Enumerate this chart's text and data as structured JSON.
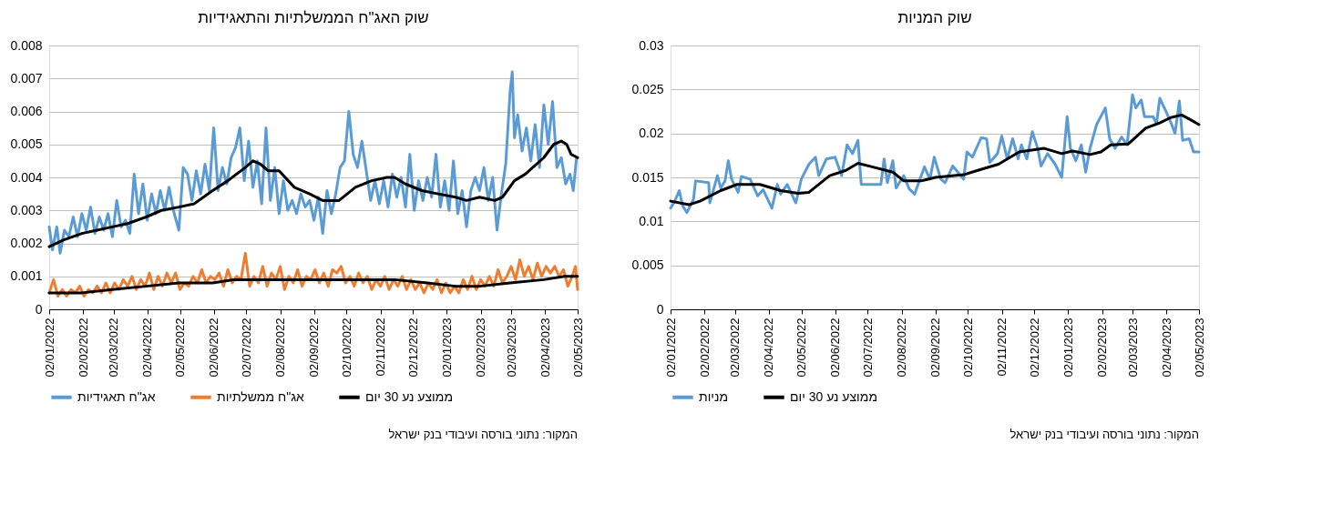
{
  "chart_data": [
    {
      "type": "line",
      "title": "שוק האג\"ח הממשלתיות והתאגידיות",
      "xlim": [
        "2022-01-02",
        "2023-05-02"
      ],
      "xticks": [
        {
          "value": "2022-01-02",
          "label": "02/01/2022"
        },
        {
          "value": "2022-02-02",
          "label": "02/02/2022"
        },
        {
          "value": "2022-03-02",
          "label": "02/03/2022"
        },
        {
          "value": "2022-04-02",
          "label": "02/04/2022"
        },
        {
          "value": "2022-05-02",
          "label": "02/05/2022"
        },
        {
          "value": "2022-06-02",
          "label": "02/06/2022"
        },
        {
          "value": "2022-07-02",
          "label": "02/07/2022"
        },
        {
          "value": "2022-08-02",
          "label": "02/08/2022"
        },
        {
          "value": "2022-09-02",
          "label": "02/09/2022"
        },
        {
          "value": "2022-10-02",
          "label": "02/10/2022"
        },
        {
          "value": "2022-11-02",
          "label": "02/11/2022"
        },
        {
          "value": "2022-12-02",
          "label": "02/12/2022"
        },
        {
          "value": "2023-01-02",
          "label": "02/01/2023"
        },
        {
          "value": "2023-02-02",
          "label": "02/02/2023"
        },
        {
          "value": "2023-03-02",
          "label": "02/03/2023"
        },
        {
          "value": "2023-04-02",
          "label": "02/04/2023"
        },
        {
          "value": "2023-05-02",
          "label": "02/05/2023"
        }
      ],
      "ylim": [
        0,
        0.008
      ],
      "yticks": [
        0,
        0.001,
        0.002,
        0.003,
        0.004,
        0.005,
        0.006,
        0.007,
        0.008
      ],
      "grid": "y",
      "legend": "bottom",
      "annotations": [
        "המקור: נתוני בורסה ועיבודי בנק ישראל"
      ],
      "series": [
        {
          "name": "אג\"ח תאגידיות",
          "color": "#5b9bd5",
          "x": [
            "2022-01-02",
            "2022-01-05",
            "2022-01-09",
            "2022-01-12",
            "2022-01-16",
            "2022-01-20",
            "2022-01-24",
            "2022-01-28",
            "2022-02-01",
            "2022-02-05",
            "2022-02-09",
            "2022-02-13",
            "2022-02-17",
            "2022-02-21",
            "2022-02-25",
            "2022-03-01",
            "2022-03-05",
            "2022-03-09",
            "2022-03-13",
            "2022-03-17",
            "2022-03-21",
            "2022-03-25",
            "2022-03-29",
            "2022-04-02",
            "2022-04-06",
            "2022-04-10",
            "2022-04-14",
            "2022-04-18",
            "2022-04-22",
            "2022-04-26",
            "2022-05-01",
            "2022-05-05",
            "2022-05-09",
            "2022-05-13",
            "2022-05-17",
            "2022-05-21",
            "2022-05-25",
            "2022-05-29",
            "2022-06-02",
            "2022-06-06",
            "2022-06-10",
            "2022-06-14",
            "2022-06-18",
            "2022-06-22",
            "2022-06-26",
            "2022-06-30",
            "2022-07-04",
            "2022-07-08",
            "2022-07-12",
            "2022-07-16",
            "2022-07-20",
            "2022-07-24",
            "2022-07-28",
            "2022-08-01",
            "2022-08-05",
            "2022-08-09",
            "2022-08-13",
            "2022-08-17",
            "2022-08-21",
            "2022-08-25",
            "2022-08-29",
            "2022-09-02",
            "2022-09-06",
            "2022-09-10",
            "2022-09-14",
            "2022-09-18",
            "2022-09-22",
            "2022-09-26",
            "2022-09-30",
            "2022-10-04",
            "2022-10-08",
            "2022-10-12",
            "2022-10-16",
            "2022-10-20",
            "2022-10-24",
            "2022-10-28",
            "2022-11-01",
            "2022-11-05",
            "2022-11-09",
            "2022-11-13",
            "2022-11-17",
            "2022-11-21",
            "2022-11-25",
            "2022-11-29",
            "2022-12-03",
            "2022-12-07",
            "2022-12-11",
            "2022-12-15",
            "2022-12-19",
            "2022-12-23",
            "2022-12-27",
            "2022-12-31",
            "2023-01-04",
            "2023-01-08",
            "2023-01-12",
            "2023-01-16",
            "2023-01-20",
            "2023-01-24",
            "2023-01-28",
            "2023-02-01",
            "2023-02-05",
            "2023-02-09",
            "2023-02-13",
            "2023-02-17",
            "2023-02-21",
            "2023-02-25",
            "2023-03-01",
            "2023-03-03",
            "2023-03-05",
            "2023-03-08",
            "2023-03-12",
            "2023-03-16",
            "2023-03-20",
            "2023-03-24",
            "2023-03-28",
            "2023-04-01",
            "2023-04-05",
            "2023-04-09",
            "2023-04-13",
            "2023-04-17",
            "2023-04-21",
            "2023-04-25",
            "2023-04-28",
            "2023-05-01"
          ],
          "values": [
            0.0025,
            0.0018,
            0.0025,
            0.0017,
            0.0024,
            0.0022,
            0.0028,
            0.0022,
            0.0029,
            0.0024,
            0.0031,
            0.0023,
            0.0028,
            0.0024,
            0.0029,
            0.0022,
            0.0033,
            0.0025,
            0.0027,
            0.0023,
            0.0041,
            0.0029,
            0.0038,
            0.0027,
            0.0035,
            0.0029,
            0.0036,
            0.003,
            0.0037,
            0.003,
            0.0024,
            0.0043,
            0.0041,
            0.0033,
            0.0042,
            0.0035,
            0.0044,
            0.0036,
            0.0055,
            0.0036,
            0.0043,
            0.0038,
            0.0046,
            0.0049,
            0.0055,
            0.0039,
            0.0051,
            0.0037,
            0.0045,
            0.0032,
            0.0055,
            0.0033,
            0.0043,
            0.0029,
            0.0039,
            0.003,
            0.0033,
            0.0029,
            0.0035,
            0.0031,
            0.0033,
            0.0027,
            0.0034,
            0.0023,
            0.0036,
            0.0029,
            0.0035,
            0.0043,
            0.0045,
            0.006,
            0.0047,
            0.0043,
            0.0051,
            0.0042,
            0.0033,
            0.0039,
            0.0032,
            0.0039,
            0.0031,
            0.0041,
            0.0034,
            0.004,
            0.0031,
            0.0047,
            0.003,
            0.0039,
            0.0033,
            0.004,
            0.0034,
            0.0047,
            0.0031,
            0.0039,
            0.003,
            0.0045,
            0.0029,
            0.0036,
            0.0025,
            0.0036,
            0.004,
            0.0036,
            0.0043,
            0.0033,
            0.004,
            0.0024,
            0.0035,
            0.0044,
            0.0066,
            0.0072,
            0.0052,
            0.0059,
            0.0048,
            0.0055,
            0.0045,
            0.0056,
            0.0043,
            0.0062,
            0.005,
            0.0063,
            0.0043,
            0.0046,
            0.0038,
            0.0041,
            0.0036,
            0.0046
          ]
        },
        {
          "name": "אג\"ח ממשלתיות",
          "color": "#ed7d31",
          "x": [
            "2022-01-02",
            "2022-01-06",
            "2022-01-10",
            "2022-01-14",
            "2022-01-18",
            "2022-01-22",
            "2022-01-26",
            "2022-01-30",
            "2022-02-03",
            "2022-02-07",
            "2022-02-11",
            "2022-02-15",
            "2022-02-19",
            "2022-02-23",
            "2022-02-27",
            "2022-03-03",
            "2022-03-07",
            "2022-03-11",
            "2022-03-15",
            "2022-03-19",
            "2022-03-23",
            "2022-03-27",
            "2022-03-31",
            "2022-04-04",
            "2022-04-08",
            "2022-04-12",
            "2022-04-16",
            "2022-04-20",
            "2022-04-24",
            "2022-04-28",
            "2022-05-02",
            "2022-05-06",
            "2022-05-10",
            "2022-05-14",
            "2022-05-18",
            "2022-05-22",
            "2022-05-26",
            "2022-05-30",
            "2022-06-03",
            "2022-06-07",
            "2022-06-11",
            "2022-06-15",
            "2022-06-19",
            "2022-06-23",
            "2022-06-27",
            "2022-07-01",
            "2022-07-05",
            "2022-07-09",
            "2022-07-13",
            "2022-07-17",
            "2022-07-21",
            "2022-07-25",
            "2022-07-29",
            "2022-08-02",
            "2022-08-06",
            "2022-08-10",
            "2022-08-14",
            "2022-08-18",
            "2022-08-22",
            "2022-08-26",
            "2022-08-30",
            "2022-09-03",
            "2022-09-07",
            "2022-09-11",
            "2022-09-15",
            "2022-09-19",
            "2022-09-23",
            "2022-09-27",
            "2022-10-01",
            "2022-10-05",
            "2022-10-09",
            "2022-10-13",
            "2022-10-17",
            "2022-10-21",
            "2022-10-25",
            "2022-10-29",
            "2022-11-02",
            "2022-11-06",
            "2022-11-10",
            "2022-11-14",
            "2022-11-18",
            "2022-11-22",
            "2022-11-26",
            "2022-11-30",
            "2022-12-04",
            "2022-12-08",
            "2022-12-12",
            "2022-12-16",
            "2022-12-20",
            "2022-12-24",
            "2022-12-28",
            "2023-01-01",
            "2023-01-05",
            "2023-01-09",
            "2023-01-13",
            "2023-01-17",
            "2023-01-21",
            "2023-01-25",
            "2023-01-29",
            "2023-02-02",
            "2023-02-06",
            "2023-02-10",
            "2023-02-14",
            "2023-02-18",
            "2023-02-22",
            "2023-02-26",
            "2023-03-02",
            "2023-03-06",
            "2023-03-10",
            "2023-03-14",
            "2023-03-18",
            "2023-03-22",
            "2023-03-26",
            "2023-03-30",
            "2023-04-03",
            "2023-04-07",
            "2023-04-11",
            "2023-04-15",
            "2023-04-19",
            "2023-04-23",
            "2023-04-27",
            "2023-04-30",
            "2023-05-02"
          ],
          "values": [
            0.0005,
            0.0009,
            0.0004,
            0.0006,
            0.0004,
            0.0006,
            0.0005,
            0.0007,
            0.0004,
            0.0006,
            0.0005,
            0.0007,
            0.0005,
            0.0008,
            0.0005,
            0.0008,
            0.0006,
            0.0009,
            0.0007,
            0.001,
            0.0006,
            0.0009,
            0.0007,
            0.0011,
            0.0006,
            0.001,
            0.0007,
            0.0011,
            0.0008,
            0.0011,
            0.0006,
            0.0008,
            0.0007,
            0.001,
            0.0008,
            0.0012,
            0.0008,
            0.001,
            0.0009,
            0.0011,
            0.0007,
            0.0012,
            0.0008,
            0.001,
            0.0009,
            0.0017,
            0.0007,
            0.001,
            0.0008,
            0.0013,
            0.0007,
            0.0011,
            0.0009,
            0.0013,
            0.0006,
            0.001,
            0.0008,
            0.0012,
            0.0007,
            0.001,
            0.0009,
            0.0012,
            0.0008,
            0.0011,
            0.0007,
            0.0012,
            0.0011,
            0.0013,
            0.0008,
            0.001,
            0.0007,
            0.0011,
            0.0008,
            0.001,
            0.0006,
            0.0009,
            0.0007,
            0.001,
            0.0006,
            0.0009,
            0.0007,
            0.001,
            0.0006,
            0.0009,
            0.0006,
            0.0008,
            0.0005,
            0.0008,
            0.0006,
            0.0009,
            0.0005,
            0.0008,
            0.0005,
            0.0007,
            0.0005,
            0.0009,
            0.0006,
            0.001,
            0.0006,
            0.0009,
            0.0007,
            0.001,
            0.0007,
            0.0012,
            0.0008,
            0.001,
            0.0013,
            0.0009,
            0.0015,
            0.001,
            0.0013,
            0.0009,
            0.0014,
            0.001,
            0.0013,
            0.0011,
            0.0013,
            0.001,
            0.0012,
            0.0007,
            0.001,
            0.0013,
            0.0006
          ]
        },
        {
          "name": "ממוצע נע 30 יום",
          "color": "#000000",
          "x": [
            "2022-01-02",
            "2022-01-15",
            "2022-02-01",
            "2022-02-15",
            "2022-03-01",
            "2022-03-15",
            "2022-04-01",
            "2022-04-15",
            "2022-05-01",
            "2022-05-15",
            "2022-06-01",
            "2022-06-15",
            "2022-07-01",
            "2022-07-08",
            "2022-07-15",
            "2022-07-22",
            "2022-08-01",
            "2022-08-15",
            "2022-08-29",
            "2022-09-10",
            "2022-09-25",
            "2022-10-10",
            "2022-10-25",
            "2022-11-08",
            "2022-11-15",
            "2022-11-25",
            "2022-12-10",
            "2022-12-25",
            "2023-01-10",
            "2023-01-20",
            "2023-02-01",
            "2023-02-15",
            "2023-02-22",
            "2023-03-05",
            "2023-03-15",
            "2023-04-01",
            "2023-04-10",
            "2023-04-17",
            "2023-04-22",
            "2023-04-26",
            "2023-05-02"
          ],
          "values": [
            0.0019,
            0.0021,
            0.0023,
            0.0024,
            0.0025,
            0.0026,
            0.0028,
            0.003,
            0.0031,
            0.0032,
            0.0036,
            0.0039,
            0.0043,
            0.0045,
            0.0044,
            0.0042,
            0.0042,
            0.0037,
            0.0035,
            0.0033,
            0.0033,
            0.0037,
            0.0039,
            0.004,
            0.004,
            0.0038,
            0.0036,
            0.0035,
            0.0034,
            0.0033,
            0.0034,
            0.0033,
            0.0034,
            0.0039,
            0.0041,
            0.0046,
            0.005,
            0.0051,
            0.005,
            0.0047,
            0.0046
          ]
        },
        {
          "color": "#000000",
          "x": [
            "2022-01-02",
            "2022-02-01",
            "2022-03-01",
            "2022-04-01",
            "2022-05-01",
            "2022-06-01",
            "2022-06-20",
            "2022-07-15",
            "2022-08-15",
            "2022-09-15",
            "2022-10-15",
            "2022-11-15",
            "2022-12-15",
            "2023-01-10",
            "2023-02-01",
            "2023-03-01",
            "2023-04-01",
            "2023-04-20",
            "2023-05-02"
          ],
          "values": [
            0.0005,
            0.0005,
            0.0006,
            0.0007,
            0.0008,
            0.0008,
            0.0009,
            0.0009,
            0.0009,
            0.0009,
            0.0009,
            0.0009,
            0.0008,
            0.0007,
            0.0007,
            0.0008,
            0.0009,
            0.001,
            0.001
          ]
        }
      ]
    },
    {
      "type": "line",
      "title": "שוק המניות",
      "xlim": [
        "2022-01-02",
        "2023-05-02"
      ],
      "xticks": [
        {
          "value": "2022-01-02",
          "label": "02/01/2022"
        },
        {
          "value": "2022-02-02",
          "label": "02/02/2022"
        },
        {
          "value": "2022-03-02",
          "label": "02/03/2022"
        },
        {
          "value": "2022-04-02",
          "label": "02/04/2022"
        },
        {
          "value": "2022-05-02",
          "label": "02/05/2022"
        },
        {
          "value": "2022-06-02",
          "label": "02/06/2022"
        },
        {
          "value": "2022-07-02",
          "label": "02/07/2022"
        },
        {
          "value": "2022-08-02",
          "label": "02/08/2022"
        },
        {
          "value": "2022-09-02",
          "label": "02/09/2022"
        },
        {
          "value": "2022-10-02",
          "label": "02/10/2022"
        },
        {
          "value": "2022-11-02",
          "label": "02/11/2022"
        },
        {
          "value": "2022-12-02",
          "label": "02/12/2022"
        },
        {
          "value": "2023-01-02",
          "label": "02/01/2023"
        },
        {
          "value": "2023-02-02",
          "label": "02/02/2023"
        },
        {
          "value": "2023-03-02",
          "label": "02/03/2023"
        },
        {
          "value": "2023-04-02",
          "label": "02/04/2023"
        },
        {
          "value": "2023-05-02",
          "label": "02/05/2023"
        }
      ],
      "ylim": [
        0,
        0.03
      ],
      "yticks": [
        0,
        0.005,
        0.01,
        0.015,
        0.02,
        0.025,
        0.03
      ],
      "grid": "y",
      "legend": "bottom",
      "annotations": [
        "המקור: נתוני בורסה ועיבודי בנק ישראל"
      ],
      "series": [
        {
          "name": "מניות",
          "color": "#5b9bd5",
          "x": [
            "2022-01-02",
            "2022-01-05",
            "2022-01-10",
            "2022-01-13",
            "2022-01-17",
            "2022-01-23",
            "2022-01-25",
            "2022-02-06",
            "2022-02-07",
            "2022-02-14",
            "2022-02-17",
            "2022-02-21",
            "2022-02-24",
            "2022-02-27",
            "2022-03-05",
            "2022-03-08",
            "2022-03-16",
            "2022-03-23",
            "2022-03-28",
            "2022-04-05",
            "2022-04-10",
            "2022-04-13",
            "2022-04-19",
            "2022-04-27",
            "2022-05-02",
            "2022-05-09",
            "2022-05-15",
            "2022-05-18",
            "2022-05-25",
            "2022-06-02",
            "2022-06-08",
            "2022-06-13",
            "2022-06-18",
            "2022-06-23",
            "2022-06-26",
            "2022-07-14",
            "2022-07-17",
            "2022-07-20",
            "2022-07-25",
            "2022-07-28",
            "2022-08-04",
            "2022-08-09",
            "2022-08-14",
            "2022-08-23",
            "2022-08-28",
            "2022-09-01",
            "2022-09-07",
            "2022-09-11",
            "2022-09-18",
            "2022-09-28",
            "2022-10-01",
            "2022-10-06",
            "2022-10-14",
            "2022-10-19",
            "2022-10-22",
            "2022-10-29",
            "2022-11-02",
            "2022-11-07",
            "2022-11-12",
            "2022-11-17",
            "2022-11-20",
            "2022-11-25",
            "2022-11-30",
            "2022-12-05",
            "2022-12-08",
            "2022-12-14",
            "2022-12-21",
            "2022-12-27",
            "2023-01-01",
            "2023-01-04",
            "2023-01-09",
            "2023-01-14",
            "2023-01-18",
            "2023-01-22",
            "2023-01-28",
            "2023-02-05",
            "2023-02-09",
            "2023-02-14",
            "2023-02-20",
            "2023-02-25",
            "2023-03-02",
            "2023-03-05",
            "2023-03-10",
            "2023-03-13",
            "2023-03-21",
            "2023-03-24",
            "2023-03-27",
            "2023-04-01",
            "2023-04-07",
            "2023-04-10",
            "2023-04-14",
            "2023-04-17",
            "2023-04-23",
            "2023-04-27",
            "2023-05-02"
          ],
          "values": [
            0.0115,
            0.0121,
            0.0135,
            0.0118,
            0.011,
            0.0125,
            0.0146,
            0.0144,
            0.0121,
            0.0152,
            0.0138,
            0.0146,
            0.0169,
            0.0148,
            0.0133,
            0.0151,
            0.0148,
            0.0129,
            0.0136,
            0.0115,
            0.0142,
            0.0131,
            0.0142,
            0.0121,
            0.0148,
            0.0165,
            0.0173,
            0.0152,
            0.0171,
            0.0173,
            0.0152,
            0.0187,
            0.0177,
            0.0192,
            0.0142,
            0.0142,
            0.0171,
            0.0144,
            0.0169,
            0.0138,
            0.0152,
            0.0137,
            0.0131,
            0.0162,
            0.0148,
            0.0173,
            0.0148,
            0.0144,
            0.0163,
            0.0148,
            0.0179,
            0.0173,
            0.0195,
            0.0194,
            0.0167,
            0.0177,
            0.0197,
            0.0171,
            0.0194,
            0.0171,
            0.0187,
            0.0171,
            0.0202,
            0.0183,
            0.0163,
            0.0177,
            0.0165,
            0.015,
            0.0219,
            0.0183,
            0.0169,
            0.0187,
            0.0156,
            0.0183,
            0.021,
            0.0229,
            0.0194,
            0.0183,
            0.0196,
            0.0187,
            0.0244,
            0.0229,
            0.0238,
            0.0219,
            0.0219,
            0.0211,
            0.024,
            0.0227,
            0.021,
            0.02,
            0.0237,
            0.0192,
            0.0194,
            0.0179,
            0.0179
          ]
        },
        {
          "name": "ממוצע נע 30 יום",
          "color": "#000000",
          "x": [
            "2022-01-02",
            "2022-01-19",
            "2022-01-29",
            "2022-02-17",
            "2022-03-04",
            "2022-03-25",
            "2022-04-13",
            "2022-04-29",
            "2022-05-09",
            "2022-05-28",
            "2022-06-12",
            "2022-06-23",
            "2022-07-06",
            "2022-07-25",
            "2022-08-04",
            "2022-08-20",
            "2022-09-02",
            "2022-09-28",
            "2022-10-11",
            "2022-10-30",
            "2022-11-18",
            "2022-12-11",
            "2022-12-27",
            "2023-01-06",
            "2023-01-22",
            "2023-02-01",
            "2023-02-10",
            "2023-02-26",
            "2023-03-14",
            "2023-03-27",
            "2023-04-06",
            "2023-04-16",
            "2023-04-25",
            "2023-05-02"
          ],
          "values": [
            0.0123,
            0.0119,
            0.0123,
            0.0135,
            0.0142,
            0.0142,
            0.0135,
            0.0132,
            0.0133,
            0.0152,
            0.0158,
            0.0166,
            0.0162,
            0.0156,
            0.0146,
            0.0146,
            0.015,
            0.0153,
            0.0158,
            0.0165,
            0.0179,
            0.0183,
            0.0177,
            0.018,
            0.0176,
            0.0179,
            0.0187,
            0.0188,
            0.0206,
            0.0212,
            0.0218,
            0.0221,
            0.0215,
            0.021
          ]
        }
      ]
    }
  ]
}
